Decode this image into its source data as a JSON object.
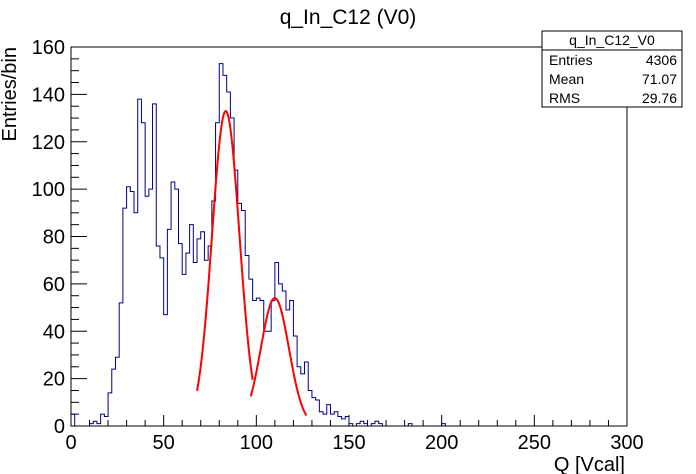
{
  "chart_data": {
    "type": "histogram",
    "title": "q_In_C12 (V0)",
    "xlabel": "Q [Vcal]",
    "ylabel": "Entries/bin",
    "xlim": [
      0,
      300
    ],
    "ylim": [
      0,
      160
    ],
    "x_ticks": [
      0,
      50,
      100,
      150,
      200,
      250,
      300
    ],
    "y_ticks": [
      0,
      20,
      40,
      60,
      80,
      100,
      120,
      140,
      160
    ],
    "bin_width": 2,
    "bins_start": 0,
    "counts": [
      5,
      0,
      0,
      0,
      0,
      1,
      2,
      1,
      5,
      4,
      14,
      24,
      29,
      52,
      92,
      101,
      99,
      90,
      138,
      128,
      97,
      100,
      136,
      76,
      71,
      47,
      83,
      103,
      100,
      77,
      64,
      73,
      85,
      69,
      79,
      82,
      70,
      76,
      95,
      128,
      153,
      148,
      141,
      130,
      108,
      94,
      91,
      72,
      62,
      53,
      54,
      53,
      40,
      40,
      53,
      69,
      60,
      57,
      49,
      53,
      38,
      25,
      22,
      27,
      15,
      12,
      11,
      6,
      5,
      9,
      5,
      6,
      4,
      3,
      4,
      1,
      0,
      1,
      2,
      1,
      0,
      1,
      2,
      1,
      0,
      0,
      0,
      0,
      0,
      0,
      0,
      1,
      0,
      0,
      0,
      0,
      0,
      0,
      0,
      0,
      1,
      0,
      0,
      0,
      0,
      0,
      0,
      0,
      0,
      0,
      0,
      0,
      0,
      0,
      0,
      0,
      0,
      0,
      0,
      0,
      0,
      0,
      0,
      0,
      0,
      0,
      0,
      0,
      0,
      0,
      0,
      0,
      0,
      0,
      0,
      0,
      0,
      0,
      0,
      0,
      0,
      0,
      0,
      0,
      0,
      0,
      0,
      0,
      0,
      0
    ],
    "fits": [
      {
        "function": "gaus",
        "amplitude": 133,
        "mean": 83.5,
        "sigma": 7.4,
        "x_range": [
          68,
          98
        ]
      },
      {
        "function": "gaus",
        "amplitude": 54,
        "mean": 110,
        "sigma": 7.6,
        "x_range": [
          97,
          127
        ]
      }
    ],
    "stats_box": {
      "name": "q_In_C12_V0",
      "rows": [
        {
          "label": "Entries",
          "value": "4306"
        },
        {
          "label": "Mean",
          "value": "71.07"
        },
        {
          "label": "RMS",
          "value": "29.76"
        }
      ]
    },
    "colors": {
      "histogram": "#000080",
      "fit": "#ff0000",
      "axis": "#000000"
    }
  }
}
